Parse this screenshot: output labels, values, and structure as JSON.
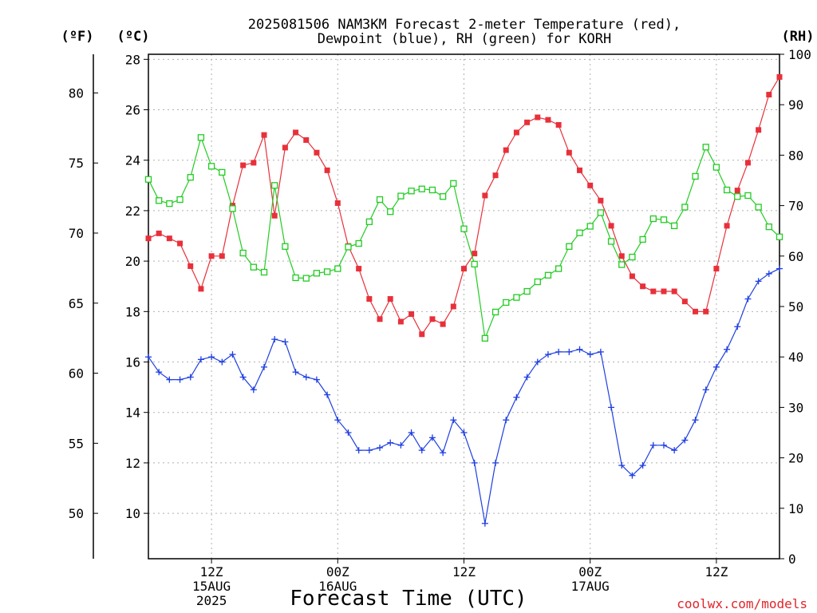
{
  "chart_data": {
    "type": "line",
    "title_line1": "2025081506 NAM3KM Forecast 2-meter Temperature (red),",
    "title_line2": "Dewpoint (blue), RH (green) for KORH",
    "units": {
      "fahrenheit": "(ºF)",
      "celsius": "(ºC)",
      "rh": "(RH)"
    },
    "xlabel": "Forecast Time (UTC)",
    "credit": "coolwx.com/models",
    "x_start": "2025-08-15 06Z",
    "x_step_hours": 1,
    "x_ticks": [
      {
        "hour": 6,
        "lines": [
          "12Z",
          "15AUG",
          "2025"
        ]
      },
      {
        "hour": 18,
        "lines": [
          "00Z",
          "16AUG"
        ]
      },
      {
        "hour": 30,
        "lines": [
          "12Z"
        ]
      },
      {
        "hour": 42,
        "lines": [
          "00Z",
          "17AUG"
        ]
      },
      {
        "hour": 54,
        "lines": [
          "12Z"
        ]
      }
    ],
    "x_range_hours": [
      0,
      60
    ],
    "celsius_axis": {
      "ylim": [
        8.2,
        28.2
      ],
      "ticks": [
        10,
        12,
        14,
        16,
        18,
        20,
        22,
        24,
        26,
        28
      ]
    },
    "fahrenheit_axis": {
      "ticks": [
        50,
        55,
        60,
        65,
        70,
        75,
        80
      ]
    },
    "rh_axis": {
      "ylim": [
        0,
        100
      ],
      "ticks": [
        0,
        10,
        20,
        30,
        40,
        50,
        60,
        70,
        80,
        90,
        100
      ]
    },
    "grid": true,
    "series": [
      {
        "key": "temp",
        "color": "#e8303a",
        "marker": "filled-square",
        "axis": "celsius",
        "values": [
          20.9,
          21.1,
          20.9,
          20.7,
          19.8,
          18.9,
          20.2,
          20.2,
          22.2,
          23.8,
          23.9,
          25.0,
          21.8,
          24.5,
          25.1,
          24.8,
          24.3,
          23.6,
          22.3,
          20.6,
          19.7,
          18.5,
          17.7,
          18.5,
          17.6,
          17.9,
          17.1,
          17.7,
          17.5,
          18.2,
          19.7,
          20.3,
          22.6,
          23.4,
          24.4,
          25.1,
          25.5,
          25.7,
          25.6,
          25.4,
          24.3,
          23.6,
          23.0,
          22.4,
          21.4,
          20.2,
          19.4,
          19.0,
          18.8,
          18.8,
          18.8,
          18.4,
          18.0,
          18.0,
          19.7,
          21.4,
          22.8,
          23.9,
          25.2,
          26.6,
          27.3
        ]
      },
      {
        "key": "dewpoint",
        "color": "#1f3fe0",
        "marker": "plus",
        "axis": "celsius",
        "values": [
          16.2,
          15.6,
          15.3,
          15.3,
          15.4,
          16.1,
          16.2,
          16.0,
          16.3,
          15.4,
          14.9,
          15.8,
          16.9,
          16.8,
          15.6,
          15.4,
          15.3,
          14.7,
          13.7,
          13.2,
          12.5,
          12.5,
          12.6,
          12.8,
          12.7,
          13.2,
          12.5,
          13.0,
          12.4,
          13.7,
          13.2,
          12.0,
          9.6,
          12.0,
          13.7,
          14.6,
          15.4,
          16.0,
          16.3,
          16.4,
          16.4,
          16.5,
          16.3,
          16.4,
          14.2,
          11.9,
          11.5,
          11.9,
          12.7,
          12.7,
          12.5,
          12.9,
          13.7,
          14.9,
          15.8,
          16.5,
          17.4,
          18.5,
          19.2,
          19.5,
          19.7
        ]
      },
      {
        "key": "rh",
        "color": "#22cc22",
        "marker": "open-square",
        "axis": "rh",
        "values": [
          75.2,
          71.0,
          70.4,
          71.2,
          75.6,
          83.5,
          77.8,
          76.6,
          69.4,
          60.6,
          57.8,
          56.8,
          74.0,
          61.9,
          55.7,
          55.6,
          56.6,
          56.9,
          57.5,
          61.8,
          62.5,
          66.8,
          71.2,
          68.8,
          71.9,
          72.9,
          73.3,
          73.1,
          71.8,
          74.4,
          65.4,
          58.4,
          43.7,
          48.9,
          50.8,
          51.8,
          53.0,
          54.9,
          56.2,
          57.5,
          61.9,
          64.6,
          65.9,
          68.6,
          62.9,
          58.3,
          59.8,
          63.3,
          67.4,
          67.2,
          66.0,
          69.7,
          75.8,
          81.6,
          77.6,
          73.1,
          71.8,
          72.0,
          69.7,
          65.8,
          63.8
        ]
      }
    ]
  }
}
